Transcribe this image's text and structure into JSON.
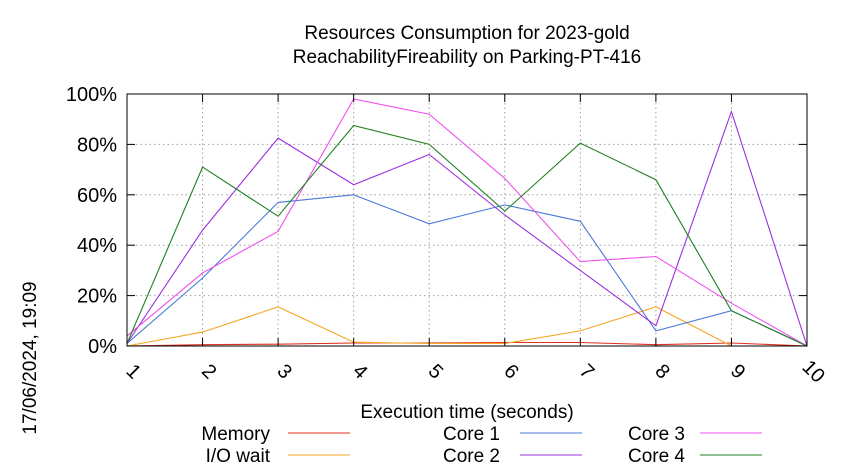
{
  "chart_data": {
    "type": "line",
    "title": "Resources Consumption for 2023-gold",
    "subtitle": "ReachabilityFireability on Parking-PT-416",
    "xlabel": "Execution time (seconds)",
    "ylabel": "",
    "xlim": [
      1,
      10
    ],
    "ylim": [
      0,
      100
    ],
    "x": [
      1,
      2,
      3,
      4,
      5,
      6,
      7,
      8,
      9,
      10
    ],
    "x_tick_labels": [
      "1",
      "2",
      "3",
      "4",
      "5",
      "6",
      "7",
      "8",
      "9",
      "10"
    ],
    "y_ticks": [
      0,
      20,
      40,
      60,
      80,
      100
    ],
    "y_tick_labels": [
      "0%",
      "20%",
      "40%",
      "60%",
      "80%",
      "100%"
    ],
    "grid": true,
    "legend_position": "bottom",
    "timestamp": "17/06/2024, 19:09",
    "series": [
      {
        "name": "Memory",
        "color": "#e0301e",
        "values": [
          0,
          0.5,
          0.7,
          1.2,
          1.2,
          1.4,
          1.4,
          0.5,
          1.2,
          0
        ]
      },
      {
        "name": "I/O wait",
        "color": "#f5a623",
        "values": [
          0,
          5.5,
          15.5,
          1.5,
          1.0,
          1.0,
          6.0,
          15.5,
          0,
          0
        ]
      },
      {
        "name": "Core 1",
        "color": "#4a7ad8",
        "values": [
          1,
          27,
          57,
          60,
          48.5,
          56,
          49.5,
          6,
          14,
          0
        ]
      },
      {
        "name": "Core 2",
        "color": "#9b30e0",
        "values": [
          1,
          46,
          82.5,
          64,
          76,
          52,
          30,
          8,
          93,
          0
        ]
      },
      {
        "name": "Core 3",
        "color": "#f050f0",
        "values": [
          4,
          29,
          45.5,
          98,
          92,
          66.5,
          33.5,
          35.5,
          17,
          0
        ]
      },
      {
        "name": "Core 4",
        "color": "#208020",
        "values": [
          1,
          71,
          51.5,
          87.5,
          80,
          53.5,
          80.5,
          66,
          14,
          0
        ]
      }
    ]
  }
}
